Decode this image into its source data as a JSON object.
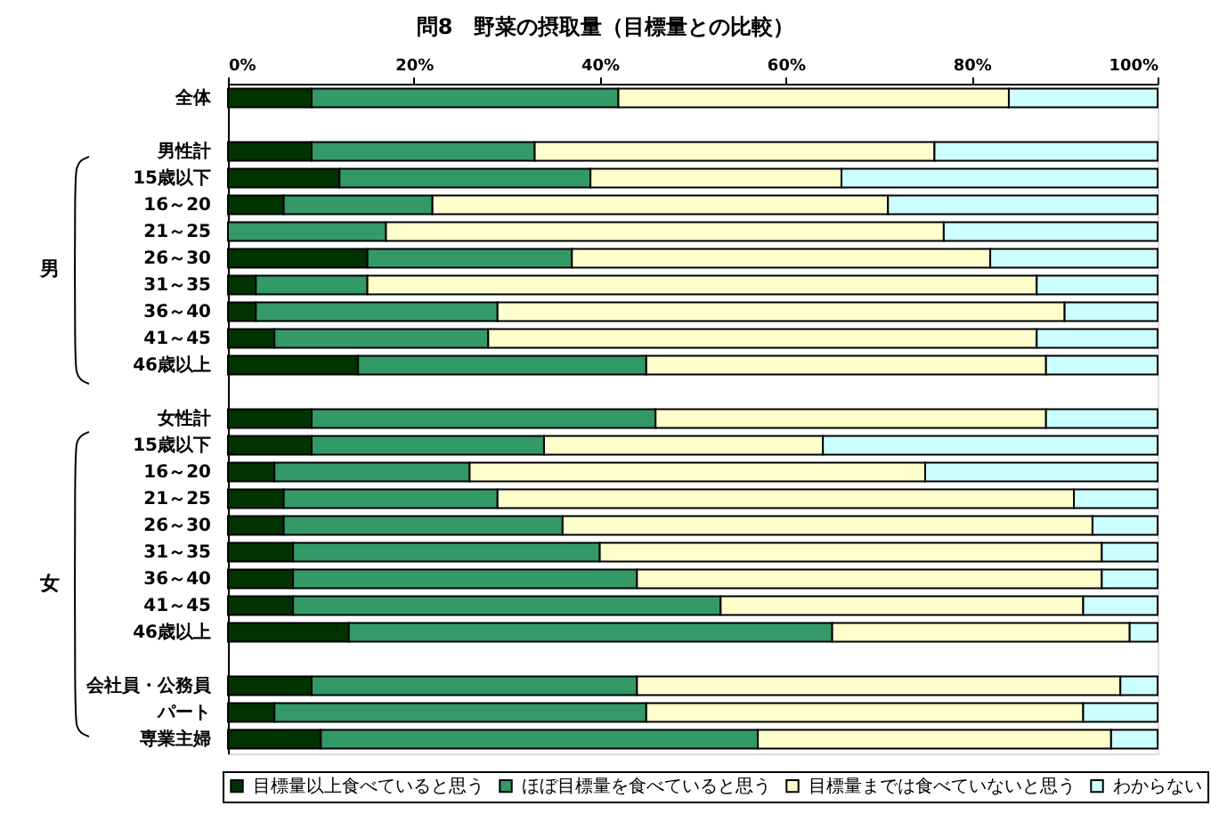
{
  "chart_data": {
    "type": "bar",
    "orientation": "horizontal",
    "stacked": true,
    "title": "問8　野菜の摂取量（目標量との比較）",
    "categories": [
      "全体",
      null,
      "男性計",
      "15歳以下",
      "16～20",
      "21～25",
      "26～30",
      "31～35",
      "36～40",
      "41～45",
      "46歳以上",
      null,
      "女性計",
      "15歳以下",
      "16～20",
      "21～25",
      "26～30",
      "31～35",
      "36～40",
      "41～45",
      "46歳以上",
      null,
      "会社員・公務員",
      "パート",
      "専業主婦"
    ],
    "series": [
      {
        "name": "目標量以上食べていると思う",
        "color": "#003300",
        "values": [
          9,
          null,
          9,
          12,
          6,
          0,
          15,
          3,
          3,
          5,
          14,
          null,
          9,
          9,
          5,
          6,
          6,
          7,
          7,
          7,
          13,
          null,
          9,
          5,
          10
        ]
      },
      {
        "name": "ほぼ目標量を食べていると思う",
        "color": "#339966",
        "values": [
          33,
          null,
          24,
          27,
          16,
          17,
          22,
          12,
          26,
          23,
          31,
          null,
          37,
          25,
          21,
          23,
          30,
          33,
          37,
          46,
          52,
          null,
          35,
          40,
          47
        ]
      },
      {
        "name": "目標量までは食べていないと思う",
        "color": "#ffffcc",
        "values": [
          42,
          null,
          43,
          27,
          49,
          60,
          45,
          72,
          61,
          59,
          43,
          null,
          42,
          30,
          49,
          62,
          57,
          54,
          50,
          39,
          32,
          null,
          52,
          47,
          38
        ]
      },
      {
        "name": "わからない",
        "color": "#ccffff",
        "values": [
          16,
          null,
          24,
          34,
          29,
          23,
          18,
          13,
          10,
          13,
          12,
          null,
          12,
          36,
          25,
          9,
          7,
          6,
          6,
          8,
          3,
          null,
          4,
          8,
          5
        ]
      }
    ],
    "xlim": [
      0,
      100
    ],
    "xticks": [
      {
        "value": 0,
        "label": "0%"
      },
      {
        "value": 20,
        "label": "20%"
      },
      {
        "value": 40,
        "label": "40%"
      },
      {
        "value": 60,
        "label": "60%"
      },
      {
        "value": 80,
        "label": "80%"
      },
      {
        "value": 100,
        "label": "100%"
      }
    ],
    "legend": "bottom",
    "grid": false,
    "annotations": [
      "男",
      "女"
    ]
  }
}
